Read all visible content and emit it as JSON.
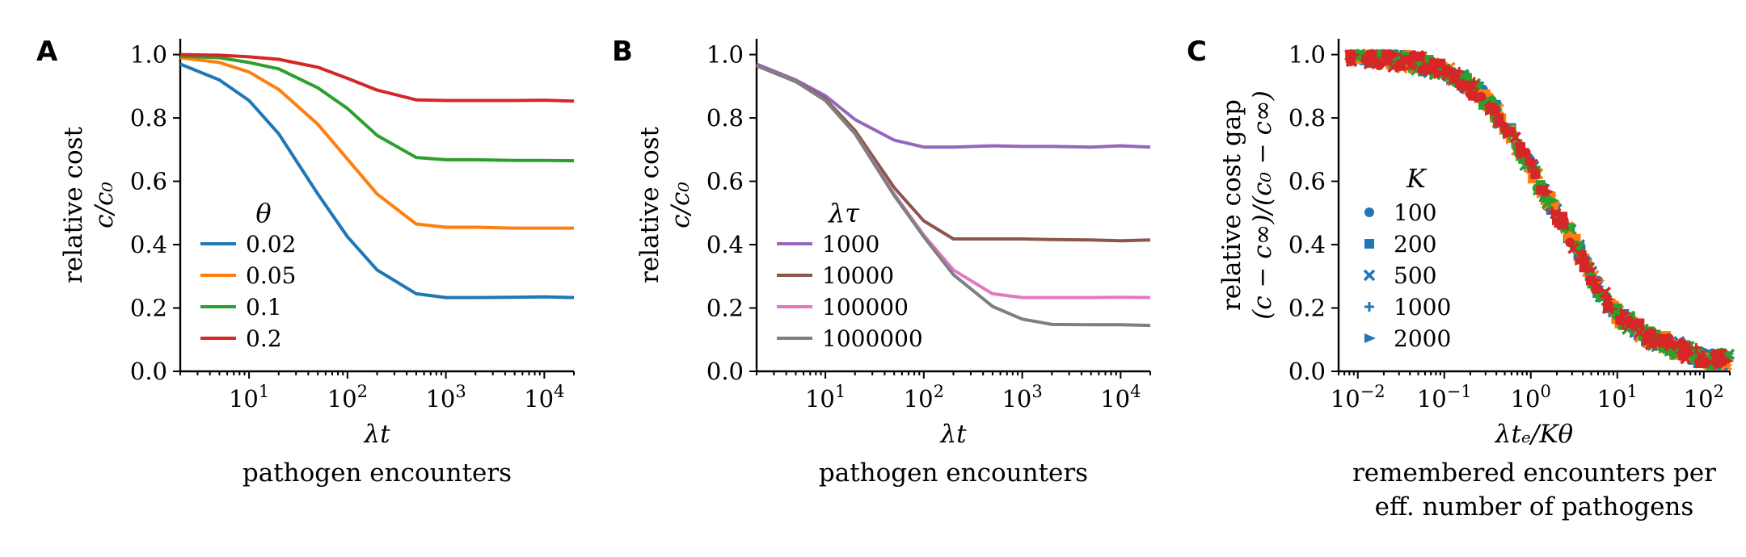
{
  "chart_data": [
    {
      "panel": "A",
      "type": "line",
      "xscale": "log",
      "xlim": [
        2,
        20000
      ],
      "ylim": [
        0,
        1.05
      ],
      "xticks": [
        10,
        100,
        1000,
        10000
      ],
      "xtick_labels": [
        [
          "10",
          "1"
        ],
        [
          "10",
          "2"
        ],
        [
          "10",
          "3"
        ],
        [
          "10",
          "4"
        ]
      ],
      "yticks": [
        "0.0",
        "0.2",
        "0.4",
        "0.6",
        "0.8",
        "1.0"
      ],
      "xlabel": "λt",
      "xlabel2": "pathogen encounters",
      "ylabel": "relative cost",
      "ylabel2": "c/c₀",
      "legend_title": "θ",
      "legend_position": "lower-left",
      "x": [
        2,
        5,
        10,
        20,
        50,
        100,
        200,
        500,
        1000,
        2000,
        5000,
        10000,
        20000
      ],
      "series": [
        {
          "name": "0.02",
          "color": "#1f77b4",
          "values": [
            0.97,
            0.92,
            0.855,
            0.75,
            0.56,
            0.425,
            0.32,
            0.245,
            0.233,
            0.233,
            0.234,
            0.235,
            0.233
          ]
        },
        {
          "name": "0.05",
          "color": "#ff7f0e",
          "values": [
            0.99,
            0.975,
            0.945,
            0.89,
            0.78,
            0.67,
            0.56,
            0.465,
            0.455,
            0.455,
            0.452,
            0.452,
            0.452
          ]
        },
        {
          "name": "0.1",
          "color": "#2ca02c",
          "values": [
            0.995,
            0.99,
            0.975,
            0.955,
            0.895,
            0.83,
            0.745,
            0.675,
            0.668,
            0.668,
            0.666,
            0.666,
            0.665
          ]
        },
        {
          "name": "0.2",
          "color": "#d62728",
          "values": [
            1.0,
            0.998,
            0.993,
            0.985,
            0.96,
            0.925,
            0.888,
            0.857,
            0.855,
            0.855,
            0.855,
            0.856,
            0.853
          ]
        }
      ]
    },
    {
      "panel": "B",
      "type": "line",
      "xscale": "log",
      "xlim": [
        2,
        20000
      ],
      "ylim": [
        0,
        1.05
      ],
      "xticks": [
        10,
        100,
        1000,
        10000
      ],
      "xtick_labels": [
        [
          "10",
          "1"
        ],
        [
          "10",
          "2"
        ],
        [
          "10",
          "3"
        ],
        [
          "10",
          "4"
        ]
      ],
      "yticks": [
        "0.0",
        "0.2",
        "0.4",
        "0.6",
        "0.8",
        "1.0"
      ],
      "xlabel": "λt",
      "xlabel2": "pathogen encounters",
      "ylabel": "relative cost",
      "ylabel2": "c/c₀",
      "legend_title": "λτ",
      "legend_position": "lower-left",
      "x": [
        2,
        5,
        10,
        20,
        50,
        100,
        200,
        500,
        1000,
        2000,
        5000,
        10000,
        20000
      ],
      "series": [
        {
          "name": "1000",
          "color": "#9467bd",
          "values": [
            0.97,
            0.92,
            0.87,
            0.795,
            0.73,
            0.708,
            0.708,
            0.712,
            0.71,
            0.71,
            0.708,
            0.712,
            0.708
          ]
        },
        {
          "name": "10000",
          "color": "#8c564b",
          "values": [
            0.965,
            0.915,
            0.86,
            0.76,
            0.58,
            0.475,
            0.418,
            0.418,
            0.418,
            0.416,
            0.415,
            0.412,
            0.415
          ]
        },
        {
          "name": "100000",
          "color": "#e377c2",
          "values": [
            0.965,
            0.915,
            0.855,
            0.75,
            0.56,
            0.43,
            0.32,
            0.245,
            0.233,
            0.233,
            0.233,
            0.234,
            0.233
          ]
        },
        {
          "name": "1000000",
          "color": "#7f7f7f",
          "values": [
            0.965,
            0.915,
            0.855,
            0.75,
            0.555,
            0.425,
            0.305,
            0.205,
            0.165,
            0.148,
            0.147,
            0.147,
            0.145
          ]
        }
      ]
    },
    {
      "panel": "C",
      "type": "scatter",
      "xscale": "log",
      "xlim": [
        0.006,
        200
      ],
      "ylim": [
        0,
        1.05
      ],
      "xticks": [
        0.01,
        0.1,
        1,
        10,
        100
      ],
      "xtick_labels": [
        [
          "10",
          "−2"
        ],
        [
          "10",
          "−1"
        ],
        [
          "10",
          "0"
        ],
        [
          "10",
          "1"
        ],
        [
          "10",
          "2"
        ]
      ],
      "yticks": [
        "0.0",
        "0.2",
        "0.4",
        "0.6",
        "0.8",
        "1.0"
      ],
      "xlabel": "λtₑ/Kθ",
      "xlabel2": "remembered encounters per",
      "xlabel3": "eff. number of pathogens",
      "ylabel": "relative cost gap",
      "ylabel2": "(c − c∞)/(c₀ − c∞)",
      "legend_title": "K",
      "legend_position": "center-left",
      "curve_x": [
        0.01,
        0.02,
        0.05,
        0.1,
        0.2,
        0.3,
        0.5,
        0.7,
        1,
        1.5,
        2,
        3,
        5,
        7,
        10,
        20,
        50,
        100,
        200
      ],
      "curve_y": [
        0.995,
        0.99,
        0.975,
        0.95,
        0.9,
        0.86,
        0.78,
        0.72,
        0.64,
        0.55,
        0.5,
        0.42,
        0.3,
        0.24,
        0.18,
        0.12,
        0.07,
        0.045,
        0.03
      ],
      "series": [
        {
          "name": "100",
          "color": "#1f77b4",
          "marker": "circle"
        },
        {
          "name": "200",
          "color": "#1f77b4",
          "marker": "square"
        },
        {
          "name": "500",
          "color": "#1f77b4",
          "marker": "x"
        },
        {
          "name": "1000",
          "color": "#1f77b4",
          "marker": "plus"
        },
        {
          "name": "2000",
          "color": "#1f77b4",
          "marker": "triangle"
        }
      ],
      "point_colors": [
        "#1f77b4",
        "#ff7f0e",
        "#2ca02c",
        "#d62728"
      ]
    }
  ]
}
